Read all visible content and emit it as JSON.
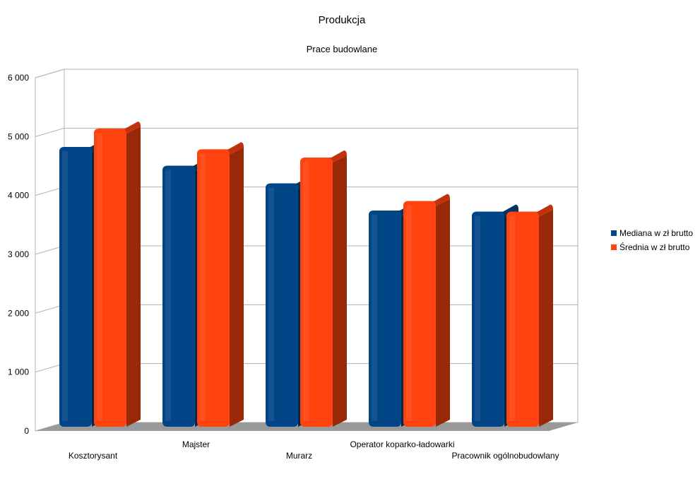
{
  "chart_data": {
    "type": "bar",
    "title": "Produkcja",
    "subtitle": "Prace budowlane",
    "xlabel": "",
    "ylabel": "",
    "ylim": [
      0,
      6000
    ],
    "yticks": [
      0,
      1000,
      2000,
      3000,
      4000,
      5000,
      6000
    ],
    "ytick_labels": [
      "0",
      "1 000",
      "2 000",
      "3 000",
      "4 000",
      "5 000",
      "6 000"
    ],
    "categories": [
      "Kosztorysant",
      "Majster",
      "Murarz",
      "Operator koparko-ładowarki",
      "Pracownik ogólnobudowlany"
    ],
    "series": [
      {
        "name": "Mediana w zł brutto",
        "values": [
          4800,
          4480,
          4180,
          3720,
          3700
        ],
        "color": "#004586"
      },
      {
        "name": "Średnia w zł brutto",
        "values": [
          5110,
          4760,
          4620,
          3880,
          3700
        ],
        "color": "#ff420e"
      }
    ],
    "grid": true,
    "legend_position": "right",
    "style": "3d-bars"
  }
}
